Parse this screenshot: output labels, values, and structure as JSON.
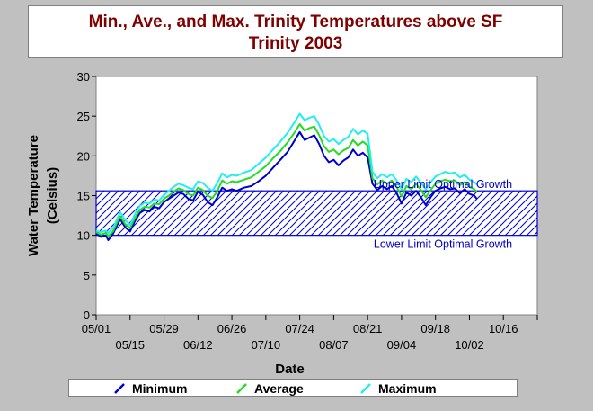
{
  "title_line1": "Min., Ave., and Max. Trinity Temperatures above SF",
  "title_line2": "Trinity 2003",
  "colors": {
    "background": "#c0c0c0",
    "title": "#800000",
    "minimum": "#0000cc",
    "average": "#22dd22",
    "maximum": "#22eeee",
    "band": "#0000cc"
  },
  "chart_data": {
    "type": "line",
    "title": "Min., Ave., and Max. Trinity Temperatures above SF Trinity 2003",
    "xlabel": "Date",
    "ylabel_line1": "Water Temperature",
    "ylabel_line2": "(Celsius)",
    "ylim": [
      0,
      30
    ],
    "y_ticks": [
      0,
      5,
      10,
      15,
      20,
      25,
      30
    ],
    "x_start": "2003-05-01",
    "x_end": "2003-10-30",
    "x_ticks": [
      {
        "date": "2003-05-01",
        "label": "05/01",
        "row": 1
      },
      {
        "date": "2003-05-15",
        "label": "05/15",
        "row": 2
      },
      {
        "date": "2003-05-29",
        "label": "05/29",
        "row": 1
      },
      {
        "date": "2003-06-12",
        "label": "06/12",
        "row": 2
      },
      {
        "date": "2003-06-26",
        "label": "06/26",
        "row": 1
      },
      {
        "date": "2003-07-10",
        "label": "07/10",
        "row": 2
      },
      {
        "date": "2003-07-24",
        "label": "07/24",
        "row": 1
      },
      {
        "date": "2003-08-07",
        "label": "08/07",
        "row": 2
      },
      {
        "date": "2003-08-21",
        "label": "08/21",
        "row": 1
      },
      {
        "date": "2003-09-04",
        "label": "09/04",
        "row": 2
      },
      {
        "date": "2003-09-18",
        "label": "09/18",
        "row": 1
      },
      {
        "date": "2003-10-02",
        "label": "10/02",
        "row": 2
      },
      {
        "date": "2003-10-16",
        "label": "10/16",
        "row": 1
      },
      {
        "date": "2003-10-30",
        "label": "",
        "row": 2
      }
    ],
    "optimal_band": {
      "lower": 10,
      "upper": 15.6,
      "upper_label": "Upper Limit Optimal Growth",
      "lower_label": "Lower Limit Optimal Growth"
    },
    "legend_placement": "bottom",
    "series": [
      {
        "name": "Minimum",
        "points": [
          [
            "2003-05-01",
            10.2
          ],
          [
            "2003-05-03",
            9.8
          ],
          [
            "2003-05-05",
            10.0
          ],
          [
            "2003-05-06",
            9.4
          ],
          [
            "2003-05-08",
            10.2
          ],
          [
            "2003-05-10",
            11.5
          ],
          [
            "2003-05-11",
            12.0
          ],
          [
            "2003-05-13",
            11.0
          ],
          [
            "2003-05-15",
            10.5
          ],
          [
            "2003-05-17",
            11.8
          ],
          [
            "2003-05-19",
            12.8
          ],
          [
            "2003-05-21",
            13.2
          ],
          [
            "2003-05-23",
            13.0
          ],
          [
            "2003-05-25",
            13.6
          ],
          [
            "2003-05-27",
            13.4
          ],
          [
            "2003-05-29",
            14.2
          ],
          [
            "2003-05-31",
            14.6
          ],
          [
            "2003-06-02",
            15.0
          ],
          [
            "2003-06-04",
            15.4
          ],
          [
            "2003-06-06",
            15.2
          ],
          [
            "2003-06-08",
            14.6
          ],
          [
            "2003-06-10",
            14.4
          ],
          [
            "2003-06-12",
            15.5
          ],
          [
            "2003-06-14",
            15.1
          ],
          [
            "2003-06-16",
            14.2
          ],
          [
            "2003-06-18",
            13.8
          ],
          [
            "2003-06-20",
            14.8
          ],
          [
            "2003-06-22",
            16.0
          ],
          [
            "2003-06-24",
            15.6
          ],
          [
            "2003-06-26",
            15.8
          ],
          [
            "2003-06-28",
            15.6
          ],
          [
            "2003-07-01",
            16.0
          ],
          [
            "2003-07-04",
            16.2
          ],
          [
            "2003-07-07",
            16.8
          ],
          [
            "2003-07-10",
            17.5
          ],
          [
            "2003-07-13",
            18.5
          ],
          [
            "2003-07-16",
            19.5
          ],
          [
            "2003-07-19",
            20.5
          ],
          [
            "2003-07-22",
            22.0
          ],
          [
            "2003-07-24",
            23.0
          ],
          [
            "2003-07-26",
            22.0
          ],
          [
            "2003-07-28",
            22.3
          ],
          [
            "2003-07-30",
            22.6
          ],
          [
            "2003-08-01",
            21.5
          ],
          [
            "2003-08-03",
            20.0
          ],
          [
            "2003-08-05",
            19.2
          ],
          [
            "2003-08-07",
            19.5
          ],
          [
            "2003-08-09",
            18.8
          ],
          [
            "2003-08-11",
            19.4
          ],
          [
            "2003-08-13",
            19.8
          ],
          [
            "2003-08-15",
            20.8
          ],
          [
            "2003-08-17",
            20.0
          ],
          [
            "2003-08-19",
            20.4
          ],
          [
            "2003-08-21",
            19.8
          ],
          [
            "2003-08-23",
            16.5
          ],
          [
            "2003-08-25",
            15.7
          ],
          [
            "2003-08-27",
            16.2
          ],
          [
            "2003-08-29",
            15.8
          ],
          [
            "2003-08-31",
            16.2
          ],
          [
            "2003-09-02",
            15.3
          ],
          [
            "2003-09-04",
            14.0
          ],
          [
            "2003-09-06",
            15.4
          ],
          [
            "2003-09-08",
            15.0
          ],
          [
            "2003-09-10",
            15.6
          ],
          [
            "2003-09-12",
            14.8
          ],
          [
            "2003-09-14",
            13.8
          ],
          [
            "2003-09-16",
            14.8
          ],
          [
            "2003-09-18",
            15.6
          ],
          [
            "2003-09-20",
            15.9
          ],
          [
            "2003-09-22",
            16.1
          ],
          [
            "2003-09-24",
            15.8
          ],
          [
            "2003-09-26",
            15.9
          ],
          [
            "2003-09-28",
            15.3
          ],
          [
            "2003-09-30",
            15.8
          ],
          [
            "2003-10-02",
            15.2
          ],
          [
            "2003-10-04",
            15.0
          ],
          [
            "2003-10-05",
            14.6
          ]
        ]
      },
      {
        "name": "Average",
        "points": [
          [
            "2003-05-01",
            10.4
          ],
          [
            "2003-05-03",
            10.1
          ],
          [
            "2003-05-05",
            10.3
          ],
          [
            "2003-05-06",
            9.9
          ],
          [
            "2003-05-08",
            10.5
          ],
          [
            "2003-05-10",
            11.9
          ],
          [
            "2003-05-11",
            12.4
          ],
          [
            "2003-05-13",
            11.4
          ],
          [
            "2003-05-15",
            10.9
          ],
          [
            "2003-05-17",
            12.2
          ],
          [
            "2003-05-19",
            13.2
          ],
          [
            "2003-05-21",
            13.6
          ],
          [
            "2003-05-23",
            13.5
          ],
          [
            "2003-05-25",
            14.0
          ],
          [
            "2003-05-27",
            13.9
          ],
          [
            "2003-05-29",
            14.6
          ],
          [
            "2003-05-31",
            15.0
          ],
          [
            "2003-06-02",
            15.5
          ],
          [
            "2003-06-04",
            15.9
          ],
          [
            "2003-06-06",
            15.7
          ],
          [
            "2003-06-08",
            15.2
          ],
          [
            "2003-06-10",
            15.0
          ],
          [
            "2003-06-12",
            16.0
          ],
          [
            "2003-06-14",
            15.7
          ],
          [
            "2003-06-16",
            15.0
          ],
          [
            "2003-06-18",
            14.7
          ],
          [
            "2003-06-20",
            15.6
          ],
          [
            "2003-06-22",
            16.9
          ],
          [
            "2003-06-24",
            16.5
          ],
          [
            "2003-06-26",
            16.8
          ],
          [
            "2003-06-28",
            16.7
          ],
          [
            "2003-07-01",
            17.0
          ],
          [
            "2003-07-04",
            17.3
          ],
          [
            "2003-07-07",
            18.0
          ],
          [
            "2003-07-10",
            18.7
          ],
          [
            "2003-07-13",
            19.7
          ],
          [
            "2003-07-16",
            20.6
          ],
          [
            "2003-07-19",
            21.7
          ],
          [
            "2003-07-22",
            23.0
          ],
          [
            "2003-07-24",
            24.0
          ],
          [
            "2003-07-26",
            23.2
          ],
          [
            "2003-07-28",
            23.5
          ],
          [
            "2003-07-30",
            23.7
          ],
          [
            "2003-08-01",
            22.6
          ],
          [
            "2003-08-03",
            21.2
          ],
          [
            "2003-08-05",
            20.5
          ],
          [
            "2003-08-07",
            20.8
          ],
          [
            "2003-08-09",
            20.2
          ],
          [
            "2003-08-11",
            20.7
          ],
          [
            "2003-08-13",
            21.0
          ],
          [
            "2003-08-15",
            22.0
          ],
          [
            "2003-08-17",
            21.3
          ],
          [
            "2003-08-19",
            21.8
          ],
          [
            "2003-08-21",
            21.3
          ],
          [
            "2003-08-23",
            17.2
          ],
          [
            "2003-08-25",
            16.4
          ],
          [
            "2003-08-27",
            16.9
          ],
          [
            "2003-08-29",
            16.5
          ],
          [
            "2003-08-31",
            16.9
          ],
          [
            "2003-09-02",
            16.1
          ],
          [
            "2003-09-04",
            14.9
          ],
          [
            "2003-09-06",
            16.2
          ],
          [
            "2003-09-08",
            15.8
          ],
          [
            "2003-09-10",
            16.5
          ],
          [
            "2003-09-12",
            15.7
          ],
          [
            "2003-09-14",
            14.8
          ],
          [
            "2003-09-16",
            15.7
          ],
          [
            "2003-09-18",
            16.5
          ],
          [
            "2003-09-20",
            16.8
          ],
          [
            "2003-09-22",
            17.0
          ],
          [
            "2003-09-24",
            16.8
          ],
          [
            "2003-09-26",
            16.9
          ],
          [
            "2003-09-28",
            16.3
          ],
          [
            "2003-09-30",
            16.7
          ],
          [
            "2003-10-02",
            16.1
          ],
          [
            "2003-10-04",
            15.8
          ],
          [
            "2003-10-05",
            15.5
          ]
        ]
      },
      {
        "name": "Maximum",
        "points": [
          [
            "2003-05-01",
            10.6
          ],
          [
            "2003-05-03",
            10.4
          ],
          [
            "2003-05-05",
            10.6
          ],
          [
            "2003-05-06",
            10.3
          ],
          [
            "2003-05-08",
            10.9
          ],
          [
            "2003-05-10",
            12.3
          ],
          [
            "2003-05-11",
            12.9
          ],
          [
            "2003-05-13",
            11.9
          ],
          [
            "2003-05-15",
            11.3
          ],
          [
            "2003-05-17",
            12.7
          ],
          [
            "2003-05-19",
            13.7
          ],
          [
            "2003-05-21",
            14.1
          ],
          [
            "2003-05-23",
            14.0
          ],
          [
            "2003-05-25",
            14.5
          ],
          [
            "2003-05-27",
            14.4
          ],
          [
            "2003-05-29",
            15.1
          ],
          [
            "2003-05-31",
            15.6
          ],
          [
            "2003-06-02",
            16.1
          ],
          [
            "2003-06-04",
            16.5
          ],
          [
            "2003-06-06",
            16.3
          ],
          [
            "2003-06-08",
            16.0
          ],
          [
            "2003-06-10",
            15.8
          ],
          [
            "2003-06-12",
            16.8
          ],
          [
            "2003-06-14",
            16.6
          ],
          [
            "2003-06-16",
            16.0
          ],
          [
            "2003-06-18",
            15.6
          ],
          [
            "2003-06-20",
            16.6
          ],
          [
            "2003-06-22",
            17.8
          ],
          [
            "2003-06-24",
            17.3
          ],
          [
            "2003-06-26",
            17.6
          ],
          [
            "2003-06-28",
            17.5
          ],
          [
            "2003-07-01",
            17.9
          ],
          [
            "2003-07-04",
            18.2
          ],
          [
            "2003-07-07",
            19.0
          ],
          [
            "2003-07-10",
            19.8
          ],
          [
            "2003-07-13",
            20.8
          ],
          [
            "2003-07-16",
            21.8
          ],
          [
            "2003-07-19",
            22.9
          ],
          [
            "2003-07-22",
            24.3
          ],
          [
            "2003-07-24",
            25.3
          ],
          [
            "2003-07-26",
            24.5
          ],
          [
            "2003-07-28",
            24.8
          ],
          [
            "2003-07-30",
            25.0
          ],
          [
            "2003-08-01",
            23.9
          ],
          [
            "2003-08-03",
            22.5
          ],
          [
            "2003-08-05",
            21.8
          ],
          [
            "2003-08-07",
            22.1
          ],
          [
            "2003-08-09",
            21.5
          ],
          [
            "2003-08-11",
            22.0
          ],
          [
            "2003-08-13",
            22.4
          ],
          [
            "2003-08-15",
            23.4
          ],
          [
            "2003-08-17",
            22.7
          ],
          [
            "2003-08-19",
            23.2
          ],
          [
            "2003-08-21",
            22.8
          ],
          [
            "2003-08-23",
            18.0
          ],
          [
            "2003-08-25",
            17.2
          ],
          [
            "2003-08-27",
            17.7
          ],
          [
            "2003-08-29",
            17.3
          ],
          [
            "2003-08-31",
            17.7
          ],
          [
            "2003-09-02",
            16.9
          ],
          [
            "2003-09-04",
            15.8
          ],
          [
            "2003-09-06",
            17.1
          ],
          [
            "2003-09-08",
            16.7
          ],
          [
            "2003-09-10",
            17.4
          ],
          [
            "2003-09-12",
            16.6
          ],
          [
            "2003-09-14",
            15.8
          ],
          [
            "2003-09-16",
            16.7
          ],
          [
            "2003-09-18",
            17.4
          ],
          [
            "2003-09-20",
            17.7
          ],
          [
            "2003-09-22",
            18.0
          ],
          [
            "2003-09-24",
            17.8
          ],
          [
            "2003-09-26",
            17.9
          ],
          [
            "2003-09-28",
            17.3
          ],
          [
            "2003-09-30",
            17.6
          ],
          [
            "2003-10-02",
            17.0
          ],
          [
            "2003-10-04",
            16.7
          ],
          [
            "2003-10-05",
            16.4
          ]
        ]
      }
    ]
  },
  "legend": [
    {
      "label": "Minimum",
      "color": "#0000cc",
      "icon": "line-swatch-icon"
    },
    {
      "label": "Average",
      "color": "#22dd22",
      "icon": "line-swatch-icon"
    },
    {
      "label": "Maximum",
      "color": "#22eeee",
      "icon": "line-swatch-icon"
    }
  ]
}
